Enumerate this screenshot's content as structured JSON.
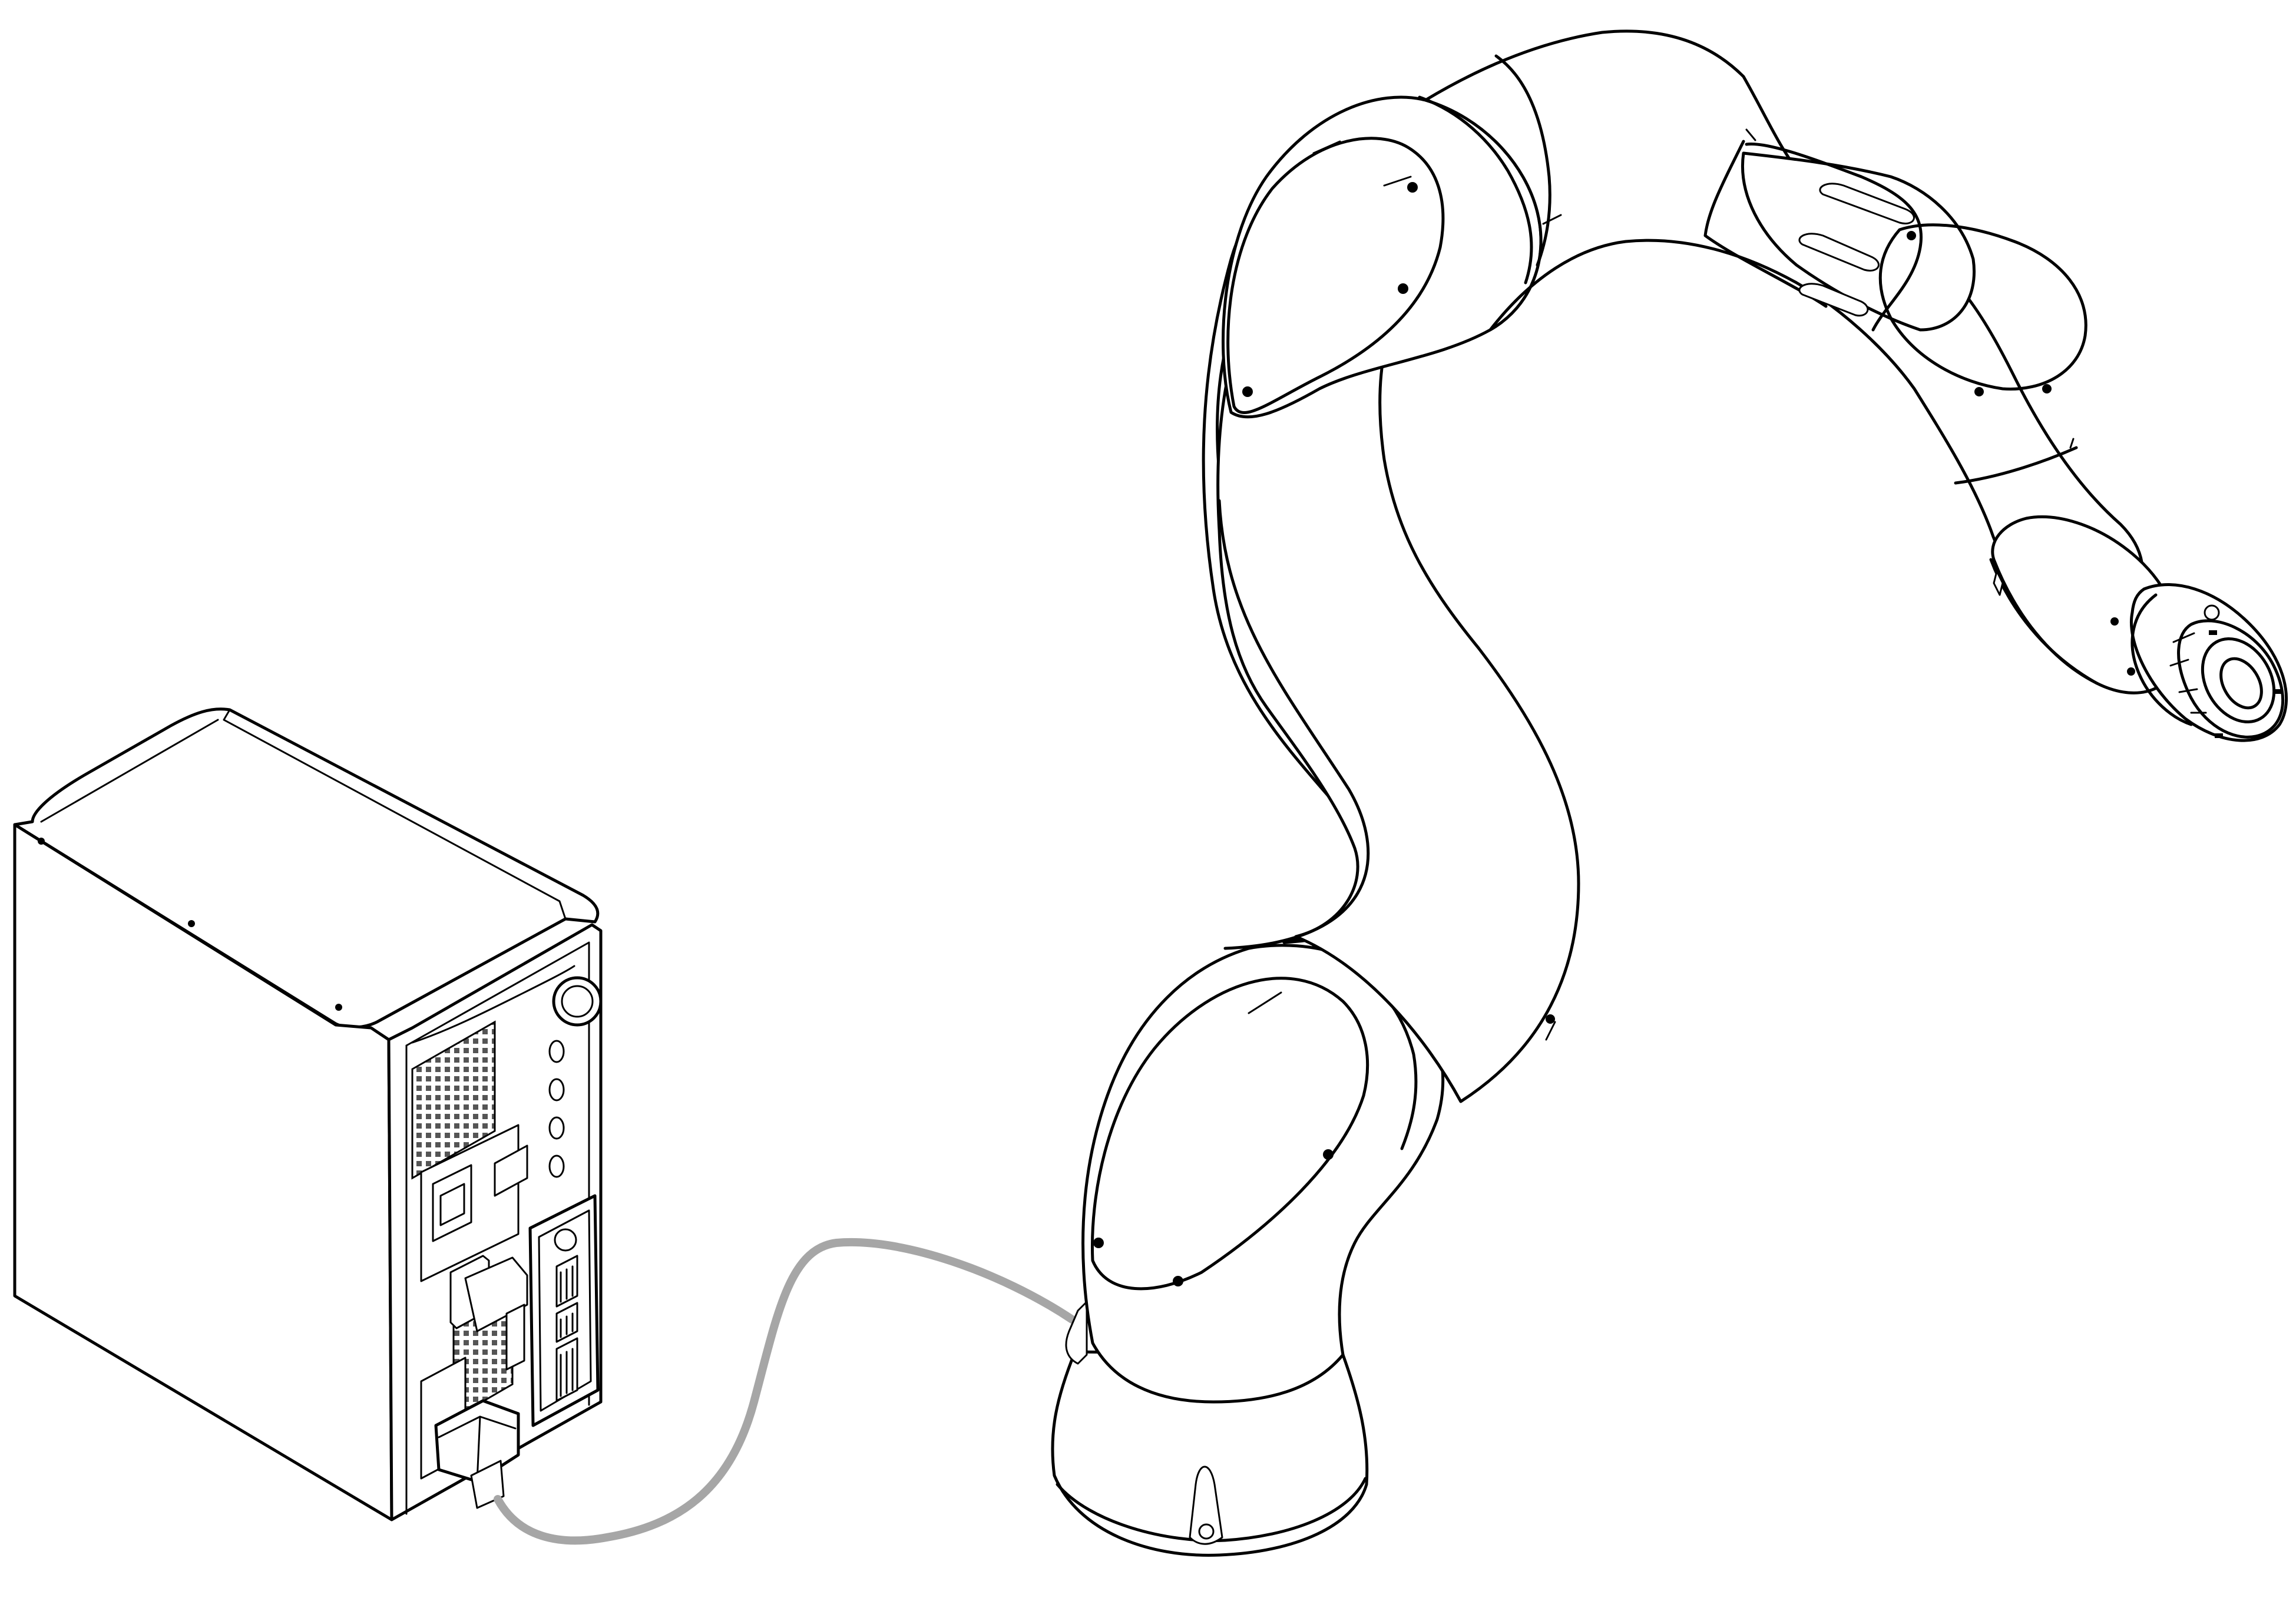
{
  "figure": {
    "type": "line-art illustration",
    "components": [
      {
        "id": "controller",
        "icon": "control-box-icon"
      },
      {
        "id": "robot",
        "icon": "robot-arm-icon"
      },
      {
        "id": "cable",
        "icon": "cable-icon"
      }
    ]
  },
  "colors": {
    "background": "#ffffff",
    "outline": "#000000",
    "cable": "#a6a6a6",
    "vent": "#555555"
  }
}
